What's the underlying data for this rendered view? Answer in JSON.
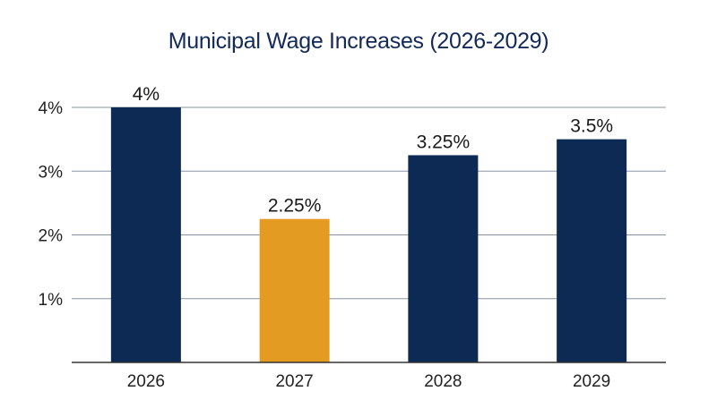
{
  "chart_data": {
    "type": "bar",
    "title": "Municipal Wage Increases (2026-2029)",
    "xlabel": "",
    "ylabel": "",
    "categories": [
      "2026",
      "2027",
      "2028",
      "2029"
    ],
    "values": [
      4,
      2.25,
      3.25,
      3.5
    ],
    "data_labels": [
      "4%",
      "2.25%",
      "3.25%",
      "3.5%"
    ],
    "ylim": [
      0,
      4
    ],
    "yticks": [
      1,
      2,
      3,
      4
    ],
    "ytick_labels": [
      "1%",
      "2%",
      "3%",
      "4%"
    ],
    "grid": true,
    "legend": "none",
    "colors": {
      "default_bar": "#0d2a55",
      "highlight_bar": "#e49b22",
      "gridline": "#8a93a6",
      "axis": "#333333",
      "title": "#12295a"
    },
    "highlight_index": 1
  }
}
